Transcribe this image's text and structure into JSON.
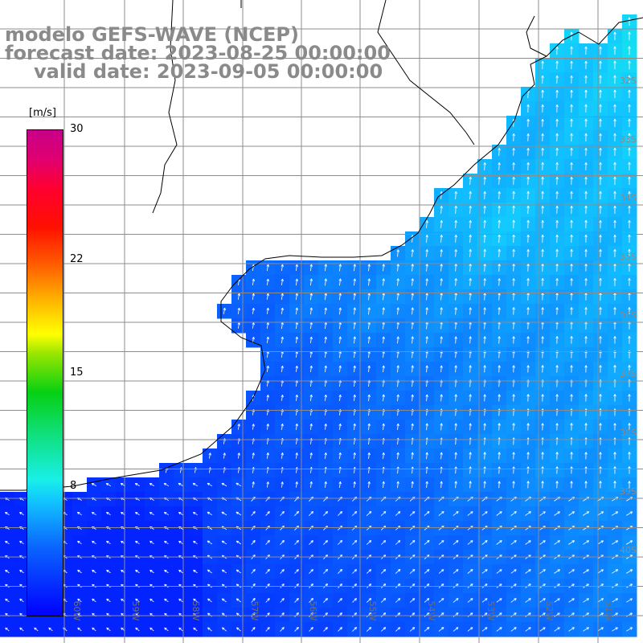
{
  "titles": {
    "line1": "modelo GEFS-WAVE (NCEP)",
    "line2": "forecast date: 2023-08-25 00:00:00",
    "line3": "valid date: 2023-09-05 00:00:00"
  },
  "colorbar": {
    "unit": "[m/s]",
    "ticks": [
      {
        "label": "30",
        "value": 30
      },
      {
        "label": "22",
        "value": 22
      },
      {
        "label": "15",
        "value": 15
      },
      {
        "label": "8",
        "value": 8
      }
    ],
    "vmin": 0,
    "vmax": 30
  },
  "map": {
    "lon_labels": [
      "60W",
      "59W",
      "58W",
      "57W",
      "56W",
      "55W",
      "54W",
      "53W",
      "52W",
      "51W"
    ],
    "lat_labels": [
      "32S",
      "33S",
      "34S",
      "35S",
      "36S",
      "37S",
      "38S",
      "39S",
      "40S"
    ],
    "colors": {
      "land": "#ffffff",
      "coastline": "#000000",
      "gridline": "#8c8c8c",
      "arrow": "#ffffff"
    }
  }
}
